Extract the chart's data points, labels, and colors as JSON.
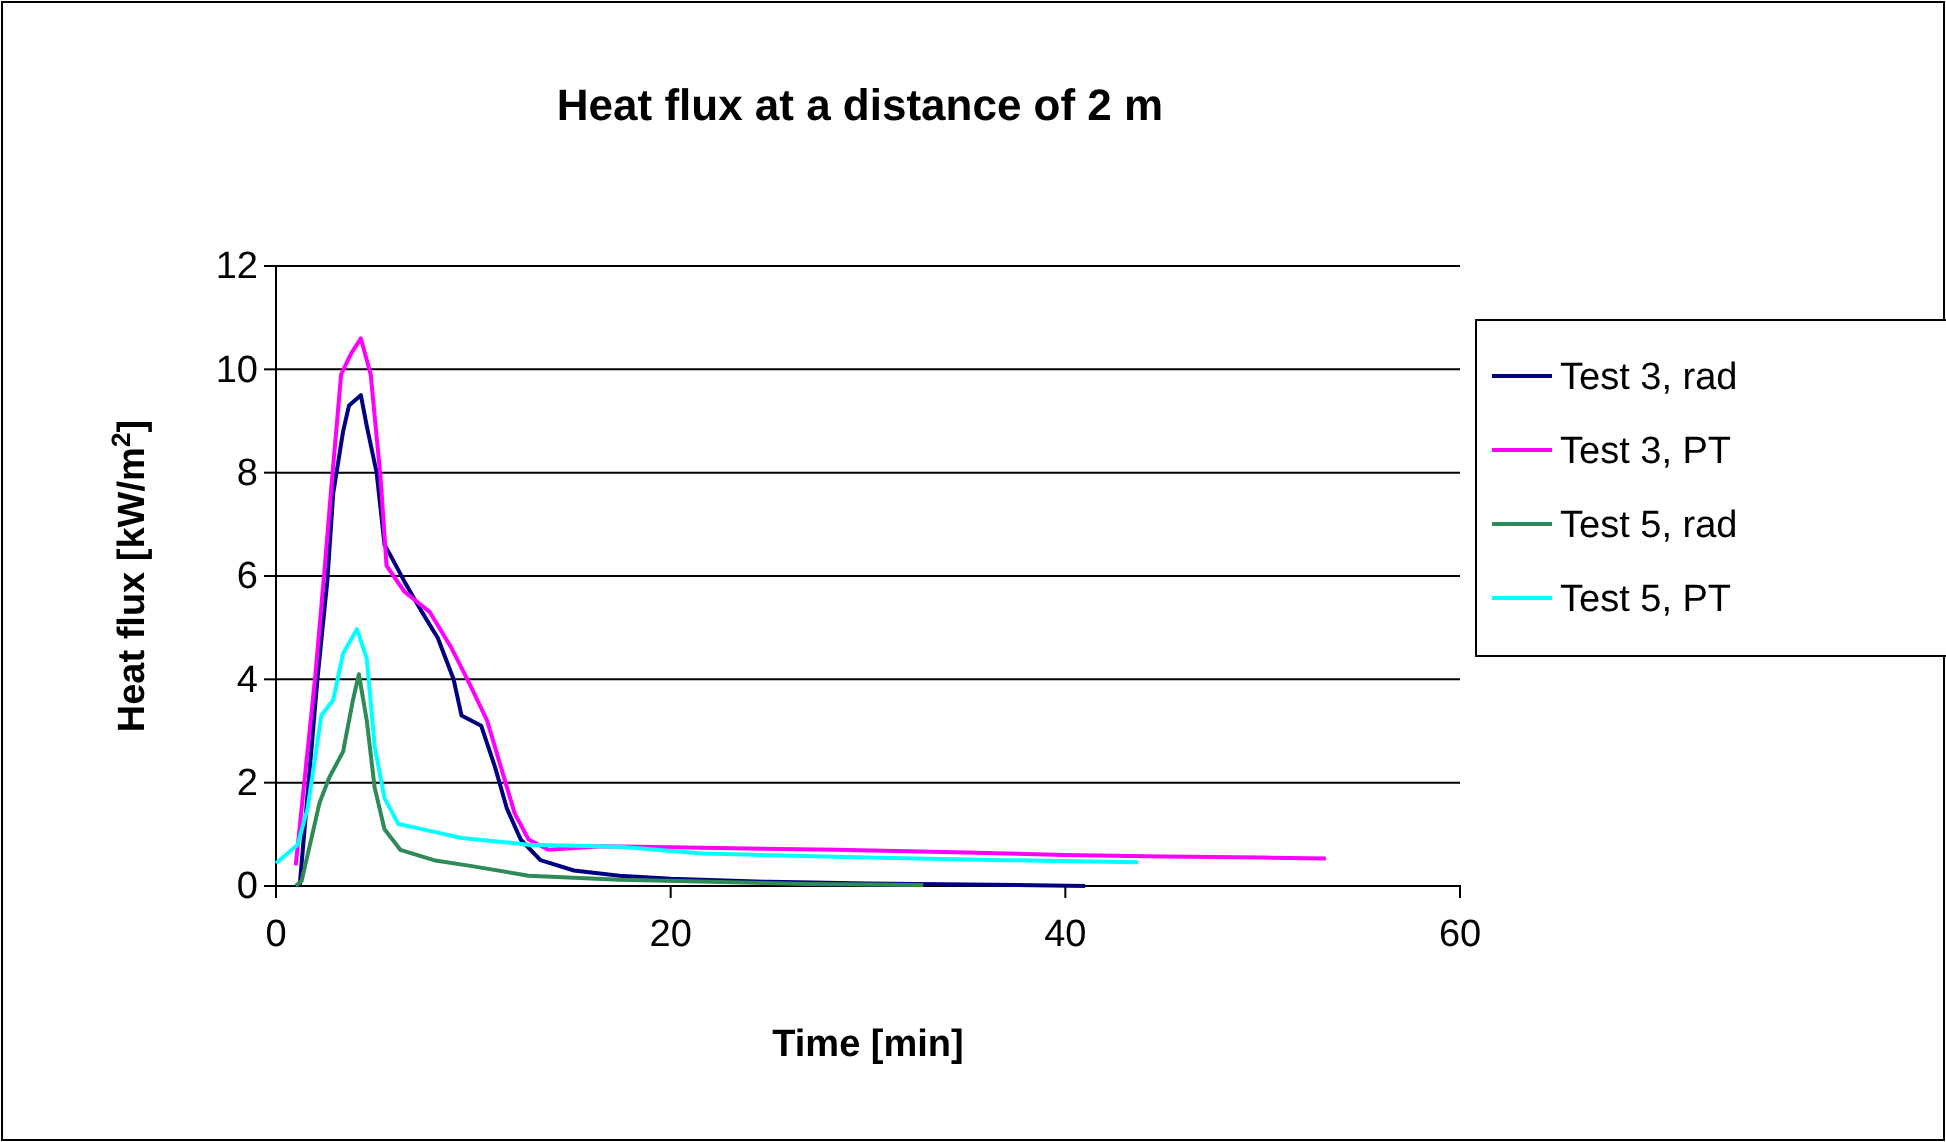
{
  "chart_data": {
    "type": "line",
    "title": "Heat flux at a distance of 2 m",
    "xlabel": "Time  [min]",
    "ylabel": "Heat flux [kW/m$^{2}$]",
    "xlim": [
      0,
      60
    ],
    "xticks": [
      0,
      20,
      40,
      60
    ],
    "ylim": [
      0,
      12
    ],
    "yticks": [
      0,
      2,
      4,
      6,
      8,
      10,
      12
    ],
    "grid": "y",
    "legend": "right",
    "series": [
      {
        "name": "Test 3, rad",
        "color": "#000080",
        "x": [
          1.2,
          2.1,
          2.6,
          2.9,
          3.4,
          3.7,
          4.3,
          4.6,
          5.1,
          5.5,
          5.8,
          6.5,
          7.4,
          8.2,
          9.0,
          9.4,
          10.4,
          11.1,
          11.7,
          12.4,
          13.4,
          15.1,
          17.4,
          20,
          25,
          30,
          35,
          41
        ],
        "values": [
          0,
          4.0,
          5.9,
          7.6,
          8.8,
          9.3,
          9.5,
          8.9,
          8.0,
          6.6,
          6.4,
          5.9,
          5.3,
          4.8,
          4.0,
          3.3,
          3.1,
          2.3,
          1.5,
          0.9,
          0.5,
          0.3,
          0.2,
          0.14,
          0.08,
          0.05,
          0.03,
          0
        ]
      },
      {
        "name": "Test 3, PT",
        "color": "#ff00ff",
        "x": [
          1.0,
          2.0,
          2.5,
          2.8,
          3.3,
          3.8,
          4.3,
          4.8,
          5.3,
          5.6,
          6.5,
          7.8,
          8.9,
          9.7,
          10.7,
          11.4,
          12.1,
          12.8,
          13.8,
          16.5,
          20,
          28.4,
          35,
          40,
          45,
          50,
          53.2
        ],
        "values": [
          0.4,
          4.1,
          6.3,
          7.7,
          9.9,
          10.3,
          10.6,
          9.9,
          7.9,
          6.2,
          5.7,
          5.3,
          4.6,
          4.0,
          3.2,
          2.3,
          1.4,
          0.9,
          0.7,
          0.77,
          0.75,
          0.7,
          0.65,
          0.6,
          0.57,
          0.55,
          0.53
        ]
      },
      {
        "name": "Test 5, rad",
        "color": "#2e8b57",
        "x": [
          1.0,
          1.3,
          2.2,
          2.7,
          3.4,
          3.9,
          4.2,
          4.6,
          5.0,
          5.5,
          6.3,
          8.0,
          10.0,
          12.8,
          17.4,
          22,
          27,
          32.8
        ],
        "values": [
          0,
          0.1,
          1.6,
          2.1,
          2.6,
          3.6,
          4.1,
          3.2,
          1.9,
          1.1,
          0.7,
          0.5,
          0.38,
          0.2,
          0.12,
          0.08,
          0.04,
          0.02
        ]
      },
      {
        "name": "Test 5, PT",
        "color": "#00ffff",
        "x": [
          0,
          1.1,
          1.6,
          2.3,
          2.9,
          3.4,
          4.1,
          4.6,
          5.0,
          5.5,
          6.2,
          7.4,
          9.4,
          12.8,
          17.4,
          21.6,
          30,
          37,
          43.7
        ],
        "values": [
          0.44,
          0.8,
          1.5,
          3.3,
          3.6,
          4.5,
          4.97,
          4.4,
          2.7,
          1.7,
          1.2,
          1.1,
          0.93,
          0.8,
          0.76,
          0.63,
          0.55,
          0.5,
          0.46
        ]
      }
    ]
  }
}
